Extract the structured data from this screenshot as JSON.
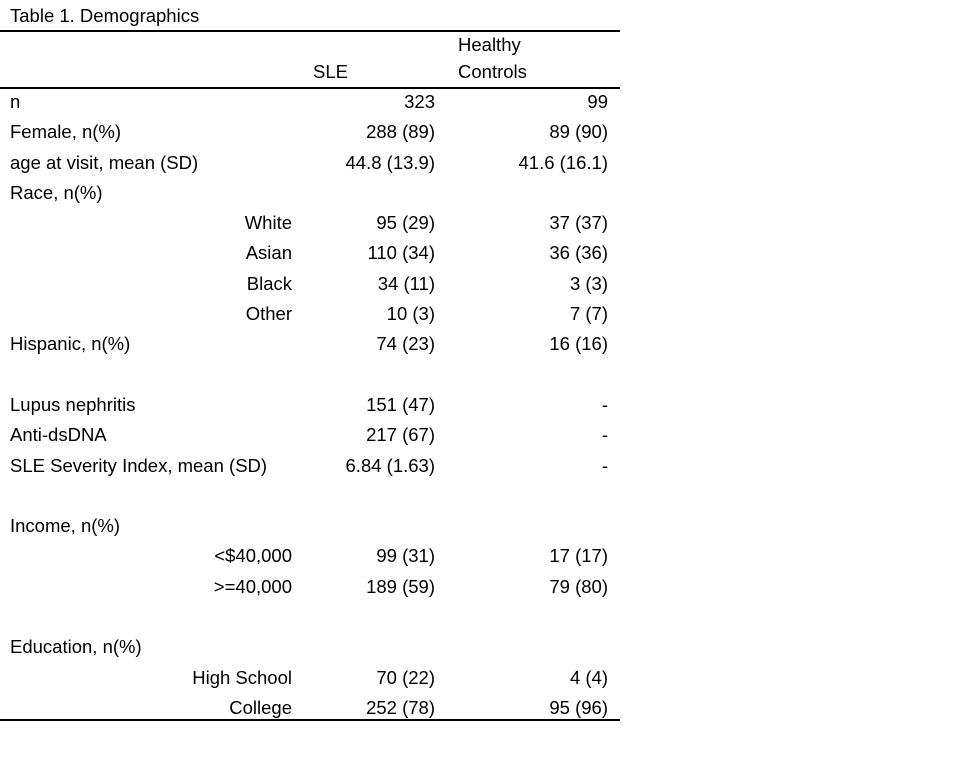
{
  "title": "Table 1. Demographics",
  "columns": {
    "sle": "SLE",
    "healthy_controls_line1": "Healthy",
    "healthy_controls_line2": "Controls"
  },
  "sections": [
    {
      "rows": [
        {
          "label": "n",
          "sle": "323",
          "hc": "99"
        },
        {
          "label": "Female, n(%)",
          "sle": "288 (89)",
          "hc": "89 (90)"
        },
        {
          "label": "age at visit, mean (SD)",
          "sle": "44.8 (13.9)",
          "hc": "41.6 (16.1)"
        },
        {
          "label": "Race, n(%)",
          "sle": "",
          "hc": ""
        },
        {
          "sublabel": "White",
          "sle": "95 (29)",
          "hc": "37 (37)"
        },
        {
          "sublabel": "Asian",
          "sle": "110 (34)",
          "hc": "36 (36)"
        },
        {
          "sublabel": "Black",
          "sle": "34 (11)",
          "hc": "3 (3)"
        },
        {
          "sublabel": "Other",
          "sle": "10 (3)",
          "hc": "7 (7)"
        },
        {
          "label": "Hispanic, n(%)",
          "sle": "74 (23)",
          "hc": "16 (16)"
        }
      ]
    },
    {
      "rows": [
        {
          "label": "Lupus nephritis",
          "sle": "151 (47)",
          "hc": "-"
        },
        {
          "label": "Anti-dsDNA",
          "sle": "217 (67)",
          "hc": "-"
        },
        {
          "label": "SLE Severity Index, mean (SD)",
          "sle": "6.84 (1.63)",
          "hc": "-"
        }
      ]
    },
    {
      "rows": [
        {
          "label": "Income, n(%)",
          "sle": "",
          "hc": ""
        },
        {
          "sublabel": "<$40,000",
          "sle": "99 (31)",
          "hc": "17 (17)"
        },
        {
          "sublabel": ">=40,000",
          "sle": "189 (59)",
          "hc": "79 (80)"
        }
      ]
    },
    {
      "rows": [
        {
          "label": "Education, n(%)",
          "sle": "",
          "hc": ""
        },
        {
          "sublabel": "High School",
          "sle": "70 (22)",
          "hc": "4 (4)"
        },
        {
          "sublabel": "College",
          "sle": "252 (78)",
          "hc": "95 (96)"
        }
      ]
    }
  ]
}
